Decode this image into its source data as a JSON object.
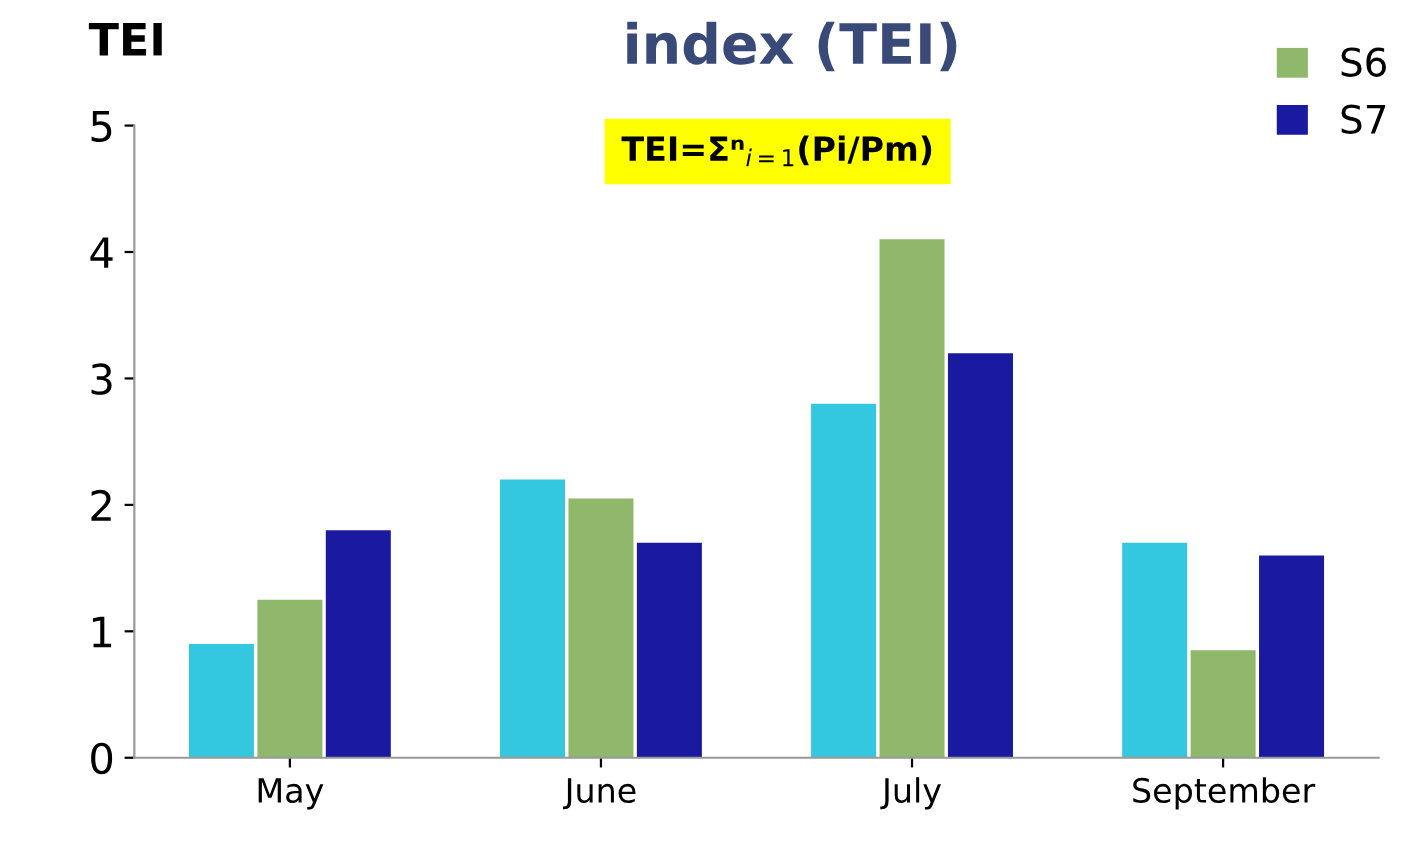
{
  "chart_data": {
    "type": "bar",
    "title": "index (TEI)",
    "ylabel": "TEI",
    "categories": [
      "May",
      "June",
      "July",
      "September"
    ],
    "series": [
      {
        "color": "#33c8e0",
        "values": [
          0.9,
          2.2,
          2.8,
          1.7
        ]
      },
      {
        "name": "S6",
        "color": "#8fb86a",
        "values": [
          1.25,
          2.05,
          4.1,
          0.85
        ]
      },
      {
        "name": "S7",
        "color": "#1a1aa0",
        "values": [
          1.8,
          1.7,
          3.2,
          1.6
        ]
      }
    ],
    "ylim": [
      0,
      5
    ],
    "yticks": [
      0,
      1,
      2,
      3,
      4,
      5
    ],
    "grid": false,
    "legend": "top right",
    "annotations": [
      "TEI=Σⁿ$_{i=1}$(Pi/Pm)"
    ]
  }
}
